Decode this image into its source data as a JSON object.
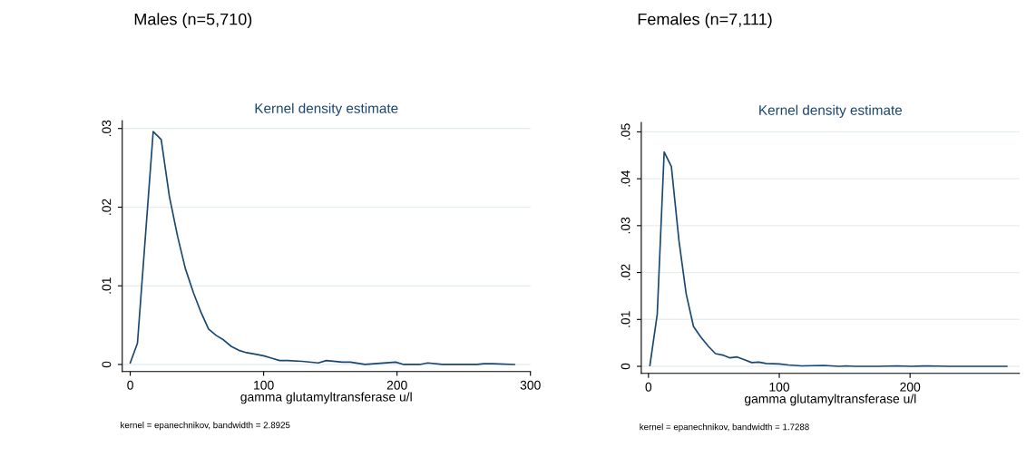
{
  "chart_data": [
    {
      "type": "line",
      "title": "Males (n=5,710)",
      "subtitle": "Kernel density estimate",
      "xlabel": "gamma glutamyltransferase u/l",
      "annotations": [
        "kernel = epanechnikov, bandwidth = 2.8925"
      ],
      "x": [
        0,
        5.4,
        17.2,
        23.2,
        29.3,
        35.6,
        41.3,
        47.4,
        53.1,
        58.7,
        64.4,
        70.1,
        75.7,
        81.4,
        87.1,
        93.9,
        100,
        106,
        112,
        118,
        129,
        141,
        147,
        159,
        165,
        176,
        199,
        205,
        217,
        223,
        234,
        260,
        265,
        272,
        288
      ],
      "series": [
        {
          "color": "#1a476f",
          "values": [
            0.0002,
            0.0027,
            0.0296,
            0.0286,
            0.0214,
            0.0162,
            0.0122,
            0.0091,
            0.0066,
            0.0045,
            0.0037,
            0.0031,
            0.0023,
            0.0018,
            0.0015,
            0.0013,
            0.0011,
            0.0008,
            0.0005,
            0.0005,
            0.0004,
            0.0002,
            0.0005,
            0.0003,
            0.0003,
            0.0,
            0.0003,
            0.0,
            0.0,
            0.0002,
            0.0,
            0.0,
            0.0001,
            0.0001,
            0.0
          ]
        }
      ],
      "xlim": [
        -6,
        300
      ],
      "xticks": [
        0,
        100,
        200,
        300
      ],
      "ylim": [
        -0.0009,
        0.031
      ],
      "yticks": [
        0,
        {
          "value": 0.01,
          "label": ".01"
        },
        {
          "value": 0.02,
          "label": ".02"
        },
        {
          "value": 0.03,
          "label": ".03"
        }
      ],
      "grid": "y"
    },
    {
      "type": "line",
      "title": "Females (n=7,111)",
      "subtitle": "Kernel density estimate",
      "xlabel": "gamma glutamyltransferase u/l",
      "annotations": [
        "kernel = epanechnikov, bandwidth = 1.7288"
      ],
      "x": [
        1.1,
        6.7,
        12,
        17.5,
        23.3,
        28.8,
        34.4,
        39.9,
        45.7,
        51.2,
        56.8,
        62.3,
        67.8,
        73.4,
        78.9,
        84.5,
        90,
        100,
        107,
        117,
        134,
        146,
        151,
        158,
        176,
        190,
        201,
        214,
        229,
        274
      ],
      "series": [
        {
          "color": "#1a476f",
          "values": [
            0.0002,
            0.0111,
            0.0457,
            0.0426,
            0.0268,
            0.0155,
            0.0085,
            0.0063,
            0.0043,
            0.0027,
            0.0024,
            0.0018,
            0.002,
            0.0014,
            0.0008,
            0.0009,
            0.0006,
            0.0005,
            0.0003,
            0.0001,
            0.0002,
            0.0,
            0.0001,
            0.0,
            0.0,
            0.0001,
            0.0,
            0.0001,
            0.0,
            0.0
          ]
        }
      ],
      "xlim": [
        -5.5,
        283.6
      ],
      "xticks": [
        0,
        100,
        200
      ],
      "ylim": [
        -0.0015,
        0.052
      ],
      "yticks": [
        0,
        {
          "value": 0.01,
          "label": ".01"
        },
        {
          "value": 0.02,
          "label": ".02"
        },
        {
          "value": 0.03,
          "label": ".03"
        },
        {
          "value": 0.04,
          "label": ".04"
        },
        {
          "value": 0.05,
          "label": ".05"
        }
      ],
      "grid": "y"
    }
  ]
}
